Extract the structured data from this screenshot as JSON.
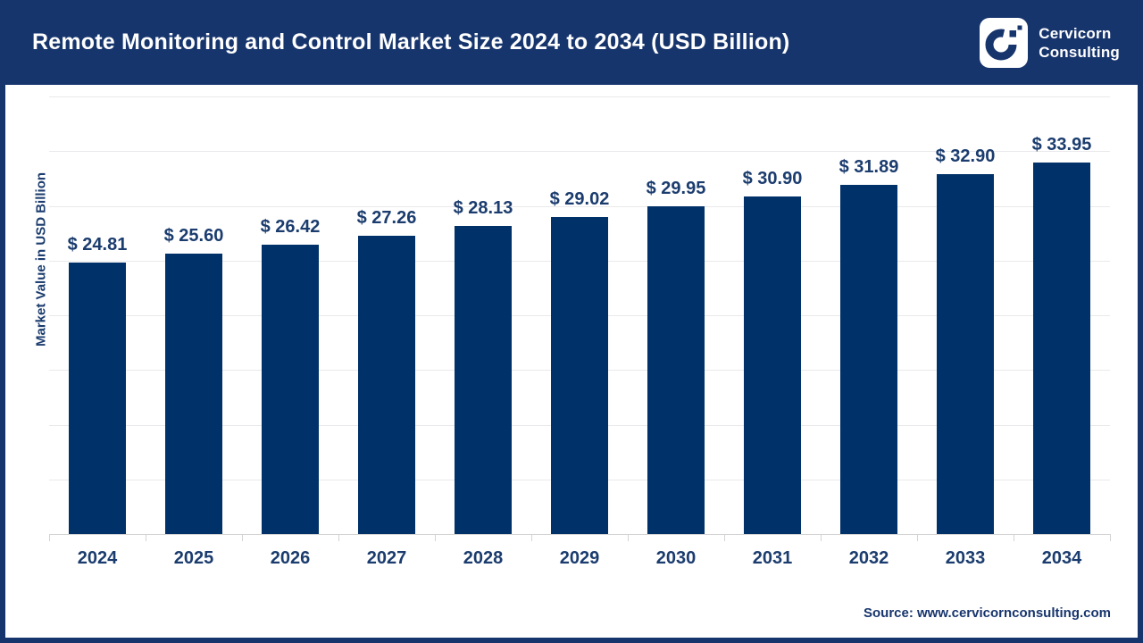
{
  "header": {
    "title": "Remote Monitoring and Control Market Size 2024 to 2034 (USD Billion)",
    "brand": {
      "line1": "Cervicorn",
      "line2": "Consulting"
    }
  },
  "chart_data": {
    "type": "bar",
    "title": "Remote Monitoring and Control Market Size 2024 to 2034 (USD Billion)",
    "categories": [
      "2024",
      "2025",
      "2026",
      "2027",
      "2028",
      "2029",
      "2030",
      "2031",
      "2032",
      "2033",
      "2034"
    ],
    "values": [
      24.81,
      25.6,
      26.42,
      27.26,
      28.13,
      29.02,
      29.95,
      30.9,
      31.89,
      32.9,
      33.95
    ],
    "display_labels": [
      "$ 24.81",
      "$ 25.60",
      "$ 26.42",
      "$ 27.26",
      "$ 28.13",
      "$ 29.02",
      "$ 29.95",
      "$ 30.90",
      "$ 31.89",
      "$ 32.90",
      "$ 33.95"
    ],
    "value_prefix": "$ ",
    "xlabel": "",
    "ylabel": "Market Value in USD Billion",
    "ylim": [
      0,
      40
    ],
    "grid_step": 5,
    "grid": "horizontal",
    "legend": "none"
  },
  "footer": {
    "source": "Source: www.cervicornconsulting.com"
  },
  "colors": {
    "navy": "#17356D",
    "bar": "#003168",
    "label_text": "#1B3C6E",
    "grid": "#E9E9EB",
    "axis_line": "#D4D4D4",
    "title_text": "#FFFFFF",
    "logo_bg": "#FFFFFF"
  }
}
